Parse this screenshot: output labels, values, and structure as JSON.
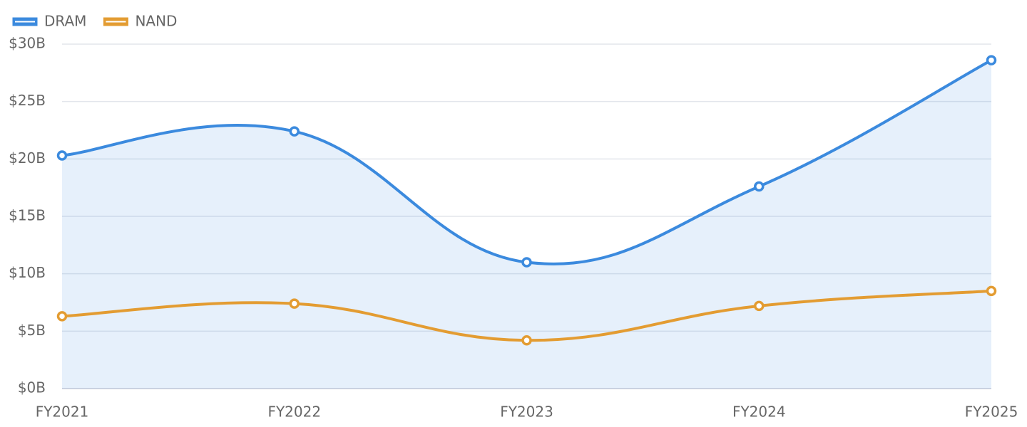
{
  "chart_data": {
    "type": "line",
    "categories": [
      "FY2021",
      "FY2022",
      "FY2023",
      "FY2024",
      "FY2025"
    ],
    "series": [
      {
        "name": "DRAM",
        "color": "#3b8ade",
        "area": true,
        "values": [
          20.3,
          22.4,
          11.0,
          17.6,
          28.6
        ]
      },
      {
        "name": "NAND",
        "color": "#e39c32",
        "area": false,
        "values": [
          6.3,
          7.4,
          4.2,
          7.2,
          8.5
        ]
      }
    ],
    "ylim": [
      0,
      30
    ],
    "yticks": [
      {
        "value": 0,
        "label": "$0B"
      },
      {
        "value": 5,
        "label": "$5B"
      },
      {
        "value": 10,
        "label": "$10B"
      },
      {
        "value": 15,
        "label": "$15B"
      },
      {
        "value": 20,
        "label": "$20B"
      },
      {
        "value": 25,
        "label": "$25B"
      },
      {
        "value": 30,
        "label": "$30B"
      }
    ],
    "grid": true,
    "legend": "top-left"
  }
}
